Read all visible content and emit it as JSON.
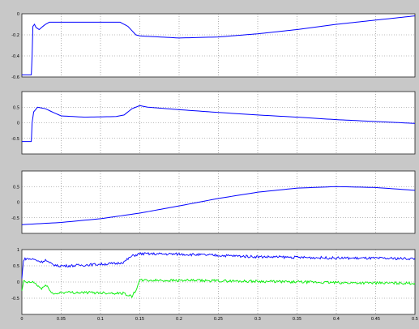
{
  "chart_data": [
    {
      "type": "line",
      "ylim": [
        -0.6,
        0
      ],
      "yticks": [
        0,
        -0.2,
        -0.4,
        -0.6
      ],
      "ytick_labels": [
        "0",
        "-0.2",
        "-0.4",
        "-0.6"
      ],
      "grid": true,
      "series": [
        {
          "color": "#0000ff",
          "points": [
            [
              0,
              -0.58
            ],
            [
              0.012,
              -0.58
            ],
            [
              0.013,
              -0.4
            ],
            [
              0.014,
              -0.12
            ],
            [
              0.016,
              -0.1
            ],
            [
              0.018,
              -0.13
            ],
            [
              0.022,
              -0.15
            ],
            [
              0.025,
              -0.13
            ],
            [
              0.03,
              -0.1
            ],
            [
              0.035,
              -0.08
            ],
            [
              0.05,
              -0.08
            ],
            [
              0.1,
              -0.08
            ],
            [
              0.125,
              -0.08
            ],
            [
              0.135,
              -0.12
            ],
            [
              0.145,
              -0.2
            ],
            [
              0.15,
              -0.21
            ],
            [
              0.2,
              -0.23
            ],
            [
              0.25,
              -0.22
            ],
            [
              0.3,
              -0.19
            ],
            [
              0.35,
              -0.15
            ],
            [
              0.4,
              -0.1
            ],
            [
              0.45,
              -0.06
            ],
            [
              0.5,
              -0.02
            ]
          ]
        }
      ]
    },
    {
      "type": "line",
      "ylim": [
        -1,
        1
      ],
      "yticks": [
        0.5,
        0,
        -0.5
      ],
      "ytick_labels": [
        "0.5",
        "0",
        "-0.5"
      ],
      "grid": true,
      "series": [
        {
          "color": "#0000ff",
          "points": [
            [
              0,
              -0.6
            ],
            [
              0.012,
              -0.6
            ],
            [
              0.013,
              0.0
            ],
            [
              0.015,
              0.35
            ],
            [
              0.02,
              0.5
            ],
            [
              0.03,
              0.45
            ],
            [
              0.04,
              0.33
            ],
            [
              0.05,
              0.22
            ],
            [
              0.08,
              0.18
            ],
            [
              0.12,
              0.2
            ],
            [
              0.13,
              0.25
            ],
            [
              0.14,
              0.45
            ],
            [
              0.15,
              0.55
            ],
            [
              0.16,
              0.5
            ],
            [
              0.2,
              0.42
            ],
            [
              0.25,
              0.33
            ],
            [
              0.3,
              0.25
            ],
            [
              0.35,
              0.18
            ],
            [
              0.4,
              0.1
            ],
            [
              0.45,
              0.04
            ],
            [
              0.5,
              -0.02
            ]
          ]
        }
      ]
    },
    {
      "type": "line",
      "ylim": [
        -1,
        1
      ],
      "yticks": [
        0.5,
        0,
        -0.5
      ],
      "ytick_labels": [
        "0.5",
        "0",
        "-0.5"
      ],
      "grid": true,
      "series": [
        {
          "color": "#0000ff",
          "points": [
            [
              0,
              -0.72
            ],
            [
              0.05,
              -0.65
            ],
            [
              0.1,
              -0.53
            ],
            [
              0.15,
              -0.35
            ],
            [
              0.2,
              -0.12
            ],
            [
              0.25,
              0.12
            ],
            [
              0.3,
              0.32
            ],
            [
              0.35,
              0.45
            ],
            [
              0.4,
              0.5
            ],
            [
              0.45,
              0.47
            ],
            [
              0.5,
              0.38
            ]
          ]
        }
      ]
    },
    {
      "type": "line",
      "ylim": [
        -1,
        1
      ],
      "yticks": [
        1,
        0.5,
        0,
        -0.5
      ],
      "ytick_labels": [
        "1",
        "0.5",
        "0",
        "-0.5"
      ],
      "xlim": [
        0,
        0.5
      ],
      "xticks": [
        0,
        0.05,
        0.1,
        0.15,
        0.2,
        0.25,
        0.3,
        0.35,
        0.4,
        0.45,
        0.5
      ],
      "xtick_labels": [
        "0",
        "0.05",
        "0.1",
        "0.15",
        "0.2",
        "0.25",
        "0.3",
        "0.35",
        "0.4",
        "0.45",
        "0.5"
      ],
      "grid": true,
      "series": [
        {
          "color": "#0000ff",
          "noise": 0.04,
          "points": [
            [
              0,
              0.1
            ],
            [
              0.002,
              0.68
            ],
            [
              0.005,
              0.72
            ],
            [
              0.015,
              0.7
            ],
            [
              0.025,
              0.62
            ],
            [
              0.03,
              0.68
            ],
            [
              0.035,
              0.58
            ],
            [
              0.045,
              0.5
            ],
            [
              0.06,
              0.5
            ],
            [
              0.1,
              0.55
            ],
            [
              0.12,
              0.57
            ],
            [
              0.13,
              0.62
            ],
            [
              0.14,
              0.8
            ],
            [
              0.15,
              0.87
            ],
            [
              0.2,
              0.86
            ],
            [
              0.3,
              0.78
            ],
            [
              0.4,
              0.74
            ],
            [
              0.5,
              0.72
            ]
          ]
        },
        {
          "color": "#00ee00",
          "noise": 0.04,
          "points": [
            [
              0,
              -0.3
            ],
            [
              0.002,
              0.02
            ],
            [
              0.008,
              -0.02
            ],
            [
              0.015,
              0.0
            ],
            [
              0.02,
              -0.12
            ],
            [
              0.025,
              -0.2
            ],
            [
              0.03,
              -0.1
            ],
            [
              0.035,
              -0.22
            ],
            [
              0.04,
              -0.38
            ],
            [
              0.05,
              -0.32
            ],
            [
              0.1,
              -0.33
            ],
            [
              0.13,
              -0.35
            ],
            [
              0.14,
              -0.45
            ],
            [
              0.145,
              -0.25
            ],
            [
              0.15,
              0.05
            ],
            [
              0.2,
              0.05
            ],
            [
              0.3,
              0.02
            ],
            [
              0.4,
              -0.02
            ],
            [
              0.5,
              -0.04
            ]
          ]
        }
      ]
    }
  ]
}
